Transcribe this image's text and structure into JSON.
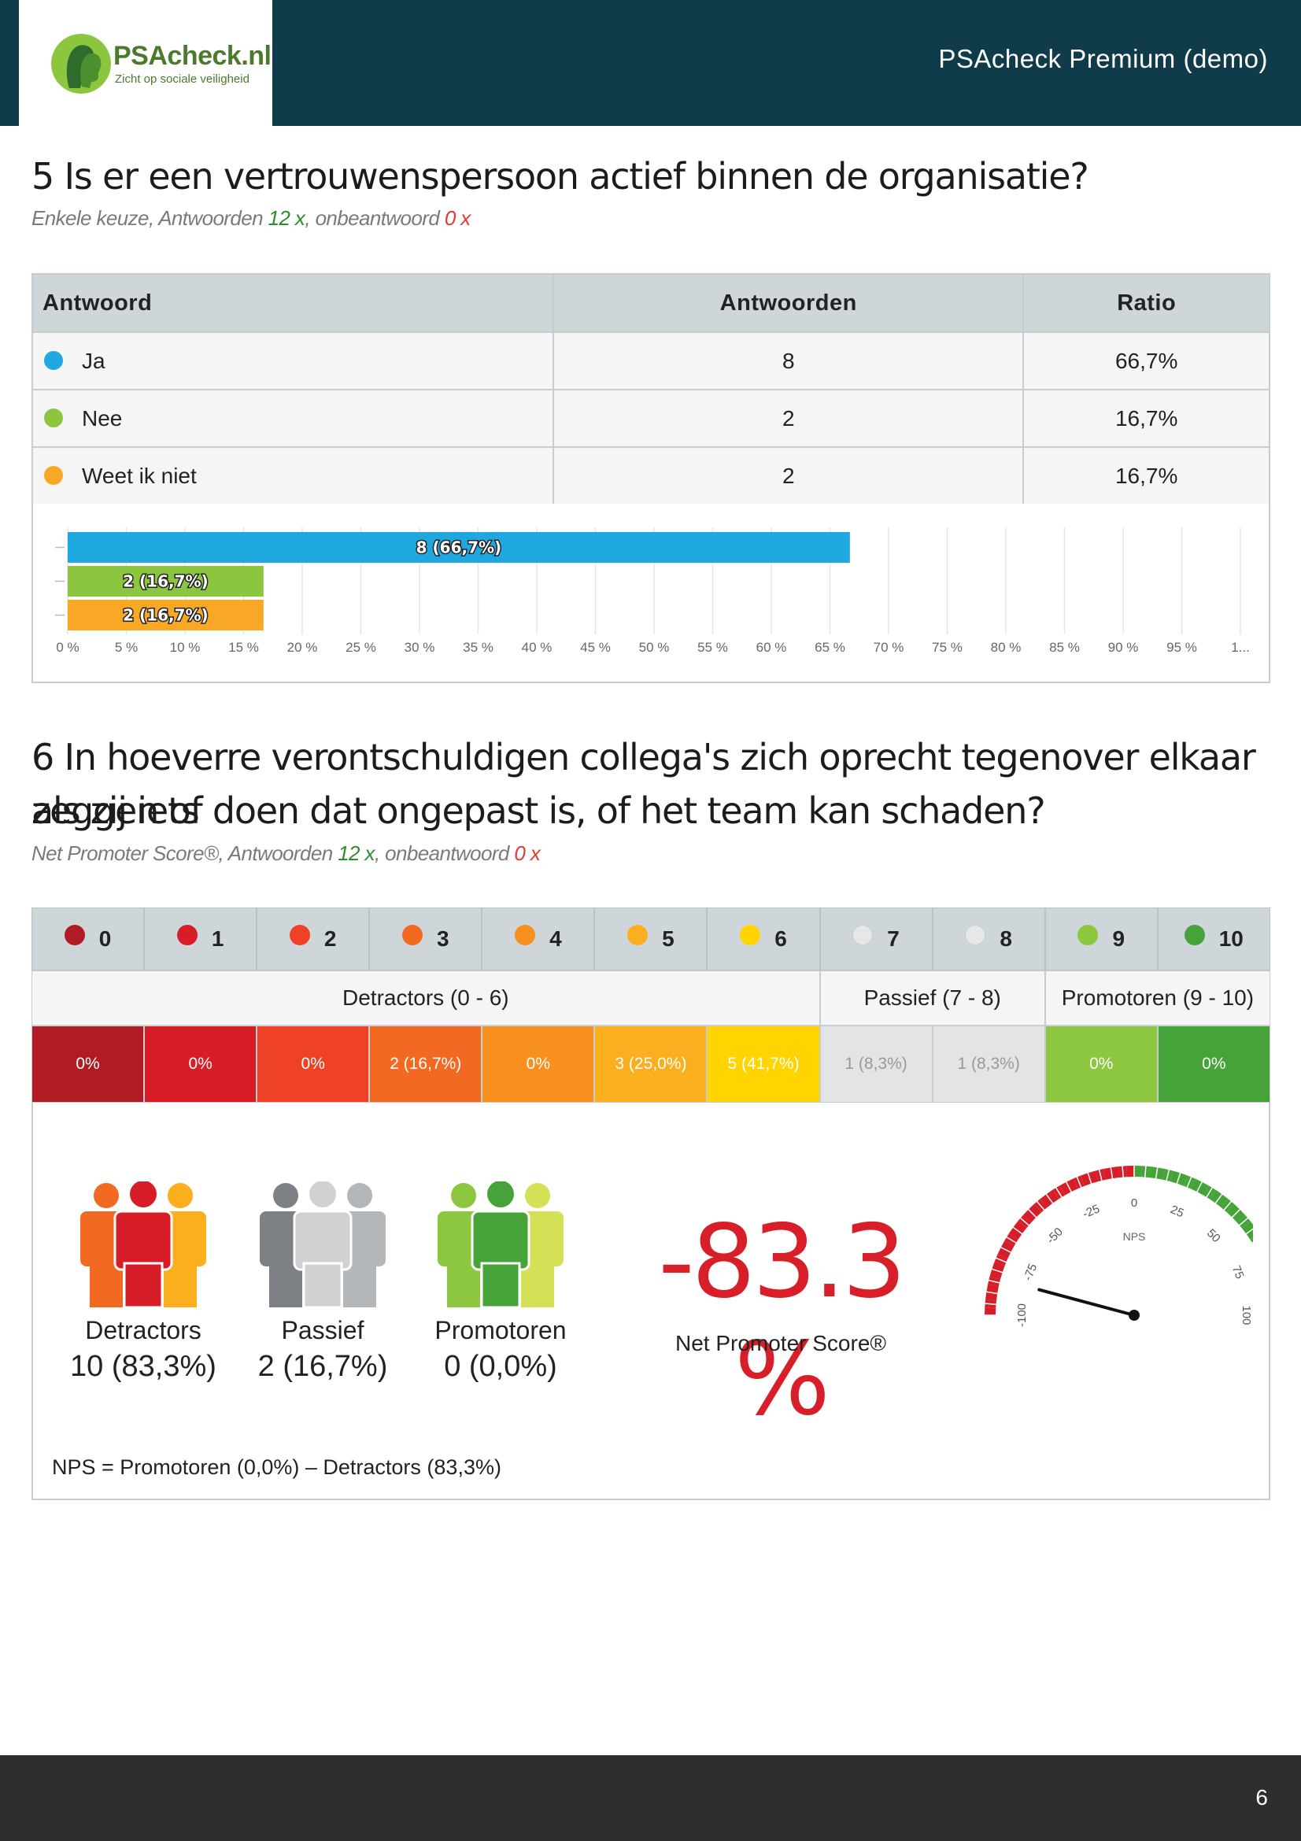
{
  "header": {
    "logo_name": "PSAcheck.nl",
    "logo_tagline": "Zicht op sociale veiligheid",
    "title": "PSAcheck Premium (demo)"
  },
  "q5": {
    "title": "5 Is er een vertrouwenspersoon actief binnen de organisatie?",
    "type": "Enkele keuze",
    "answers_label": ", Antwoorden ",
    "answers_count": "12 x",
    "unanswered_label": ", onbeantwoord ",
    "unanswered_count": "0 x",
    "table": {
      "headers": [
        "Antwoord",
        "Antwoorden",
        "Ratio"
      ],
      "rows": [
        {
          "label": "Ja",
          "count": "8",
          "ratio": "66,7%",
          "color": "#1fa8e0"
        },
        {
          "label": "Nee",
          "count": "2",
          "ratio": "16,7%",
          "color": "#8cc63f"
        },
        {
          "label": "Weet ik niet",
          "count": "2",
          "ratio": "16,7%",
          "color": "#f9a825"
        }
      ]
    }
  },
  "chart_data": {
    "type": "bar",
    "orientation": "horizontal",
    "categories": [
      "Ja",
      "Nee",
      "Weet ik niet"
    ],
    "values": [
      66.7,
      16.7,
      16.7
    ],
    "data_labels": [
      "8 (66,7%)",
      "2 (16,7%)",
      "2 (16,7%)"
    ],
    "colors": [
      "#1fa8e0",
      "#8cc63f",
      "#f9a825"
    ],
    "xlim": [
      0,
      100
    ],
    "tick_labels": [
      "0 %",
      "5 %",
      "10 %",
      "15 %",
      "20 %",
      "25 %",
      "30 %",
      "35 %",
      "40 %",
      "45 %",
      "50 %",
      "55 %",
      "60 %",
      "65 %",
      "70 %",
      "75 %",
      "80 %",
      "85 %",
      "90 %",
      "95 %",
      "1..."
    ],
    "grid": true
  },
  "q6": {
    "title_line1": "6 In hoeverre verontschuldigen collega's zich oprecht tegenover elkaar als zij iets",
    "title_line2": "zeggen of doen dat ongepast is, of het team kan schaden?",
    "type": "Net Promoter Score®",
    "answers_label": ", Antwoorden ",
    "answers_count": "12 x",
    "unanswered_label": ", onbeantwoord ",
    "unanswered_count": "0 x",
    "scale": [
      {
        "score": "0",
        "value": "0%",
        "color": "#b01c24"
      },
      {
        "score": "1",
        "value": "0%",
        "color": "#d71e28"
      },
      {
        "score": "2",
        "value": "0%",
        "color": "#ef4126"
      },
      {
        "score": "3",
        "value": "2 (16,7%)",
        "color": "#f26a22"
      },
      {
        "score": "4",
        "value": "0%",
        "color": "#f7901e"
      },
      {
        "score": "5",
        "value": "3 (25,0%)",
        "color": "#fbaf1e"
      },
      {
        "score": "6",
        "value": "5 (41,7%)",
        "color": "#ffd400"
      },
      {
        "score": "7",
        "value": "1 (8,3%)",
        "color": "#e3e4e5"
      },
      {
        "score": "8",
        "value": "1 (8,3%)",
        "color": "#e3e4e5"
      },
      {
        "score": "9",
        "value": "0%",
        "color": "#8dc63f"
      },
      {
        "score": "10",
        "value": "0%",
        "color": "#45a33a"
      }
    ],
    "groups": [
      {
        "label": "Detractors (0 - 6)",
        "span": 7
      },
      {
        "label": "Passief (7 - 8)",
        "span": 2
      },
      {
        "label": "Promotoren (9 - 10)",
        "span": 2
      }
    ],
    "summary": [
      {
        "label": "Detractors",
        "value": "10 (83,3%)"
      },
      {
        "label": "Passief",
        "value": "2 (16,7%)"
      },
      {
        "label": "Promotoren",
        "value": "0 (0,0%)"
      }
    ],
    "nps_value": "-83.3 %",
    "nps_label": "Net Promoter Score®",
    "gauge": {
      "title": "NPS",
      "value": -83.3,
      "min": -100,
      "max": 100,
      "ticks": [
        "-100",
        "-75",
        "-50",
        "-25",
        "0",
        "25",
        "50",
        "75",
        "100"
      ]
    },
    "formula": "NPS = Promotoren (0,0%) – Detractors (83,3%)"
  },
  "footer": {
    "page_number": "6"
  }
}
